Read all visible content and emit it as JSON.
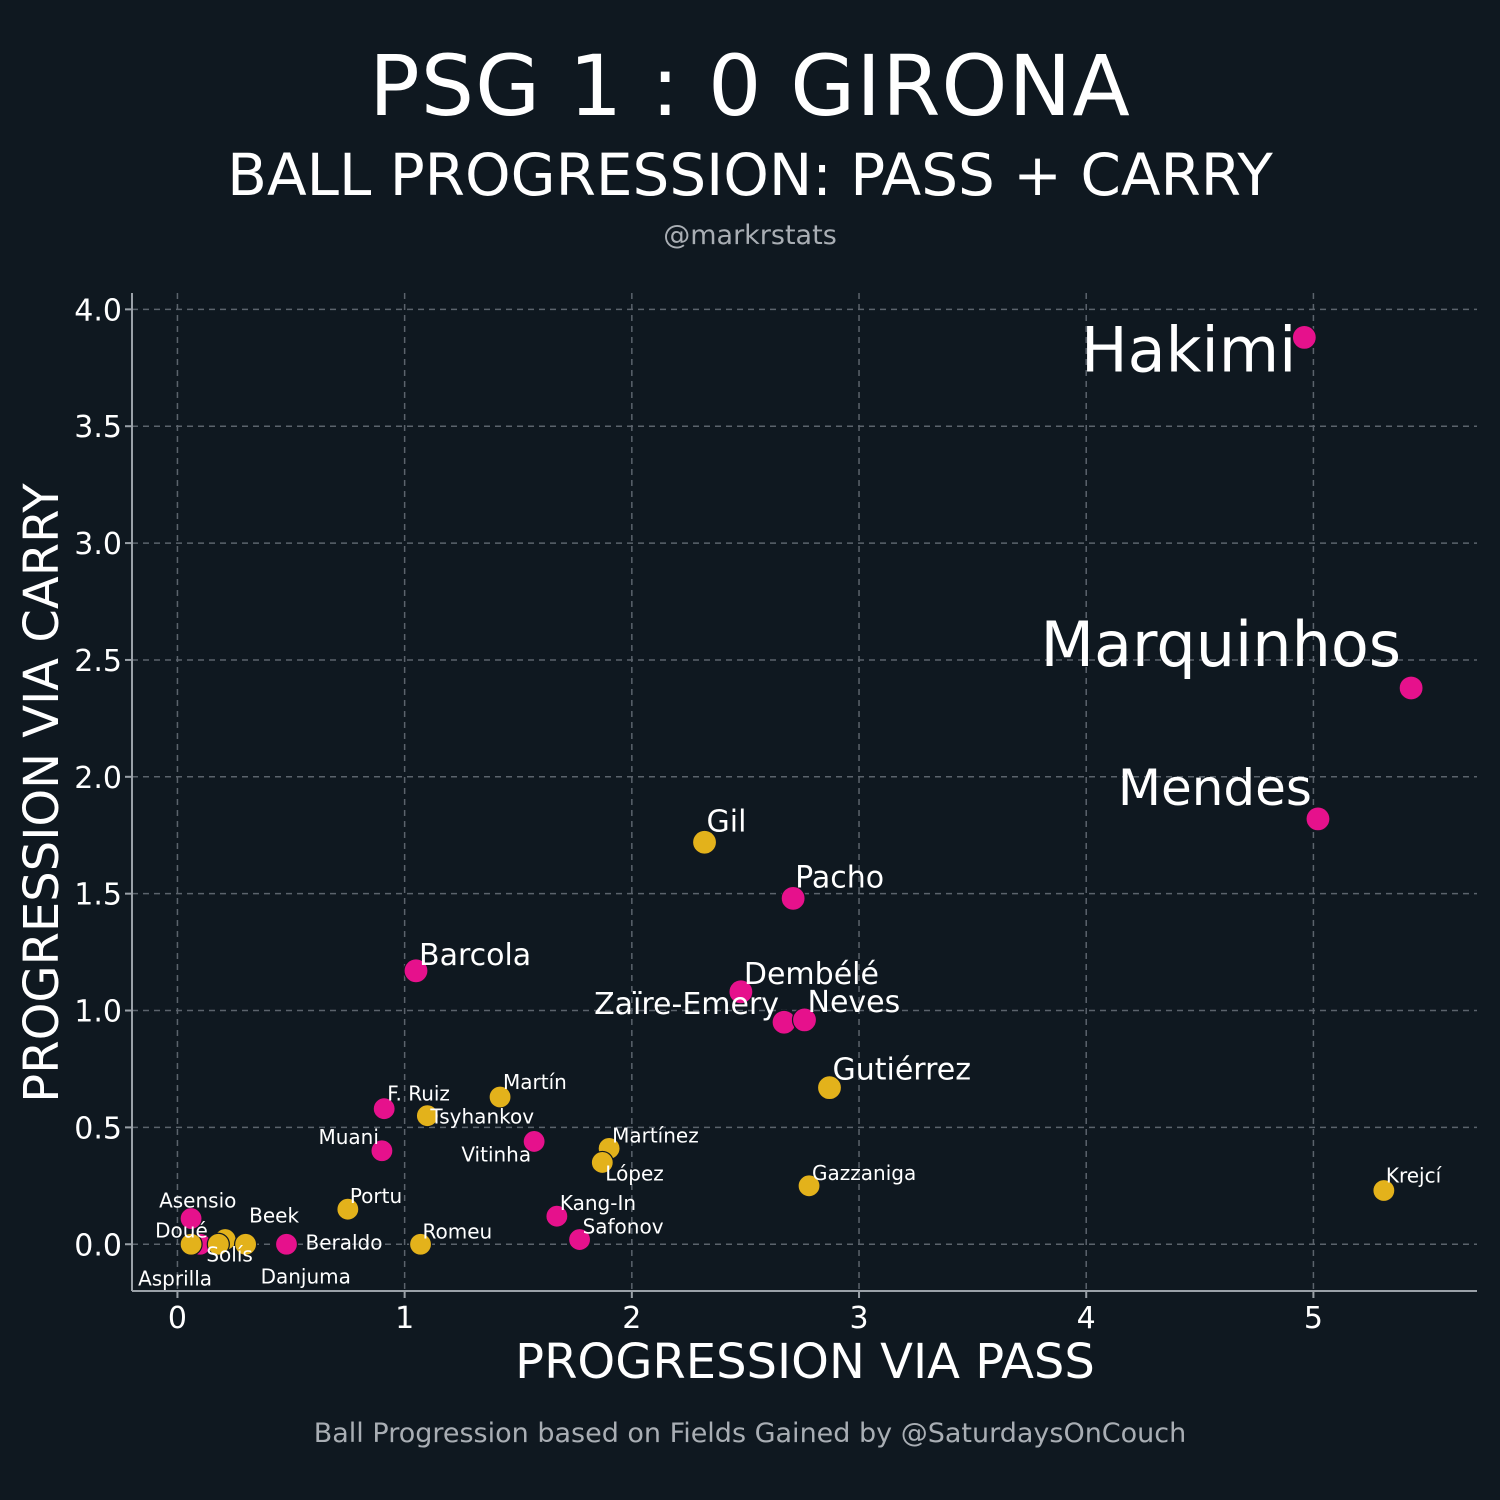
{
  "header": {
    "title": "PSG 1 : 0 GIRONA",
    "subtitle": "BALL PROGRESSION: PASS + CARRY",
    "credit": "@markrstats"
  },
  "footer": {
    "note": "Ball Progression based on Fields Gained by @SaturdaysOnCouch"
  },
  "colors": {
    "background": "#0f1820",
    "psg": "#e6118c",
    "girona": "#e3b21b",
    "grid": "#5b636c",
    "text": "#ffffff",
    "muted": "#a9aeb4"
  },
  "chart_data": {
    "type": "scatter",
    "xlabel": "PROGRESSION VIA PASS",
    "ylabel": "PROGRESSION VIA CARRY",
    "xlim": [
      -0.2,
      5.72
    ],
    "ylim": [
      -0.2,
      4.07
    ],
    "xticks": [
      0,
      1,
      2,
      3,
      4,
      5
    ],
    "xtick_labels": [
      "0",
      "1",
      "2",
      "3",
      "4",
      "5"
    ],
    "yticks": [
      0,
      0.5,
      1,
      1.5,
      2,
      2.5,
      3,
      3.5,
      4
    ],
    "ytick_labels": [
      "0.0",
      "0.5",
      "1.0",
      "1.5",
      "2.0",
      "2.5",
      "3.0",
      "3.5",
      "4.0"
    ],
    "grid": true,
    "series": [
      {
        "color": "#e6118c",
        "points": [
          {
            "label": "Hakimi",
            "x": 4.96,
            "y": 3.88,
            "size": "xl"
          },
          {
            "label": "Marquinhos",
            "x": 5.43,
            "y": 2.38,
            "size": "xl"
          },
          {
            "label": "Mendes",
            "x": 5.02,
            "y": 1.82,
            "size": "l"
          },
          {
            "label": "Pacho",
            "x": 2.71,
            "y": 1.48,
            "size": "m"
          },
          {
            "label": "Dembélé",
            "x": 2.48,
            "y": 1.08,
            "size": "m"
          },
          {
            "label": "Zaïre-Emery",
            "x": 2.67,
            "y": 0.95,
            "size": "m"
          },
          {
            "label": "Neves",
            "x": 2.76,
            "y": 0.96,
            "size": "m"
          },
          {
            "label": "Barcola",
            "x": 1.05,
            "y": 1.17,
            "size": "m"
          },
          {
            "label": "F. Ruiz",
            "x": 0.91,
            "y": 0.58,
            "size": "s"
          },
          {
            "label": "Muani",
            "x": 0.9,
            "y": 0.4,
            "size": "s"
          },
          {
            "label": "Vitinha",
            "x": 1.57,
            "y": 0.44,
            "size": "s"
          },
          {
            "label": "Kang-In",
            "x": 1.67,
            "y": 0.12,
            "size": "s"
          },
          {
            "label": "Safonov",
            "x": 1.77,
            "y": 0.02,
            "size": "s"
          },
          {
            "label": "Beraldo",
            "x": 0.48,
            "y": 0.0,
            "size": "s"
          },
          {
            "label": "Asensio",
            "x": 0.06,
            "y": 0.11,
            "size": "s"
          },
          {
            "label": "Doué",
            "x": 0.1,
            "y": 0.0,
            "size": "s"
          }
        ]
      },
      {
        "color": "#e3b21b",
        "points": [
          {
            "label": "Gil",
            "x": 2.32,
            "y": 1.72,
            "size": "m"
          },
          {
            "label": "Gutiérrez",
            "x": 2.87,
            "y": 0.67,
            "size": "m"
          },
          {
            "label": "Martín",
            "x": 1.42,
            "y": 0.63,
            "size": "s"
          },
          {
            "label": "Tsyhankov",
            "x": 1.1,
            "y": 0.55,
            "size": "s"
          },
          {
            "label": "Martínez",
            "x": 1.9,
            "y": 0.41,
            "size": "s"
          },
          {
            "label": "López",
            "x": 1.87,
            "y": 0.35,
            "size": "s"
          },
          {
            "label": "Gazzaniga",
            "x": 2.78,
            "y": 0.25,
            "size": "s"
          },
          {
            "label": "Krejcí",
            "x": 5.31,
            "y": 0.23,
            "size": "s"
          },
          {
            "label": "Portu",
            "x": 0.75,
            "y": 0.15,
            "size": "s"
          },
          {
            "label": "Romeu",
            "x": 1.07,
            "y": 0.0,
            "size": "s"
          },
          {
            "label": "Beek",
            "x": 0.21,
            "y": 0.02,
            "size": "s"
          },
          {
            "label": "Solís",
            "x": 0.18,
            "y": 0.0,
            "size": "s"
          },
          {
            "label": "Danjuma",
            "x": 0.3,
            "y": 0.0,
            "size": "s"
          },
          {
            "label": "Asprilla",
            "x": 0.06,
            "y": 0.0,
            "size": "s"
          }
        ]
      }
    ]
  }
}
